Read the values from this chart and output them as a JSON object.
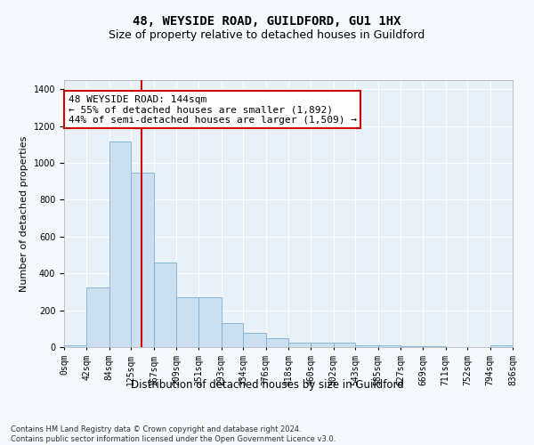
{
  "title": "48, WEYSIDE ROAD, GUILDFORD, GU1 1HX",
  "subtitle": "Size of property relative to detached houses in Guildford",
  "xlabel": "Distribution of detached houses by size in Guildford",
  "ylabel": "Number of detached properties",
  "bar_color": "#ccdff0",
  "bar_edgecolor": "#7bafd4",
  "background_color": "#e8f0f8",
  "fig_background": "#f5f8fd",
  "vline_x": 144,
  "vline_color": "#cc0000",
  "annotation_text": "48 WEYSIDE ROAD: 144sqm\n← 55% of detached houses are smaller (1,892)\n44% of semi-detached houses are larger (1,509) →",
  "footnote": "Contains HM Land Registry data © Crown copyright and database right 2024.\nContains public sector information licensed under the Open Government Licence v3.0.",
  "bin_edges": [
    0,
    42,
    84,
    125,
    167,
    209,
    251,
    293,
    334,
    376,
    418,
    460,
    502,
    543,
    585,
    627,
    669,
    711,
    752,
    794,
    836
  ],
  "bar_heights": [
    10,
    325,
    1115,
    945,
    460,
    270,
    270,
    130,
    75,
    48,
    22,
    22,
    22,
    10,
    10,
    5,
    5,
    0,
    0,
    10
  ],
  "ylim": [
    0,
    1450
  ],
  "yticks": [
    0,
    200,
    400,
    600,
    800,
    1000,
    1200,
    1400
  ],
  "grid_color": "#ffffff",
  "tick_label_fontsize": 7,
  "title_fontsize": 10,
  "subtitle_fontsize": 9,
  "ylabel_fontsize": 8,
  "xlabel_fontsize": 8.5,
  "annotation_fontsize": 8,
  "footnote_fontsize": 6
}
